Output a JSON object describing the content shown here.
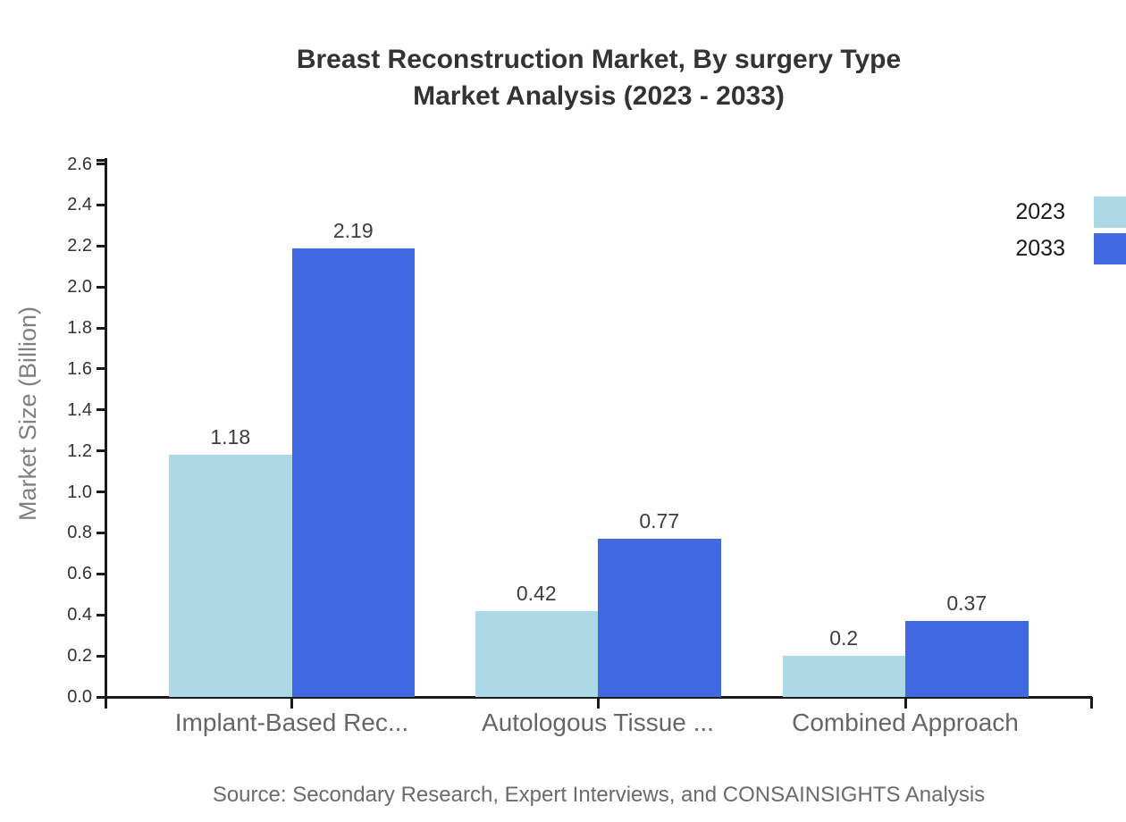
{
  "title": {
    "line1": "Breast Reconstruction Market, By surgery Type",
    "line2": "Market Analysis (2023 - 2033)"
  },
  "source_note": "Source: Secondary Research, Expert Interviews, and CONSAINSIGHTS Analysis",
  "legend": [
    {
      "label": "2023",
      "color": "#ADD8E6"
    },
    {
      "label": "2033",
      "color": "#4169E1"
    }
  ],
  "colors": {
    "axis": "#1a1a1a",
    "bar_2023": "#ADD8E6",
    "bar_2033": "#4169E1",
    "title_text": "#333333",
    "tick_text": "#333333",
    "category_text": "#666666",
    "value_text": "#3d3d3d",
    "ylabel_text": "#808080",
    "source_text": "#6b6b6b"
  },
  "chart_data": {
    "type": "bar",
    "title": "Breast Reconstruction Market, By surgery Type Market Analysis (2023 - 2033)",
    "categories": [
      "Implant-Based Rec...",
      "Autologous Tissue ...",
      "Combined Approach"
    ],
    "series": [
      {
        "name": "2023",
        "color": "#ADD8E6",
        "values": [
          1.18,
          0.42,
          0.2
        ],
        "value_labels": [
          "1.18",
          "0.42",
          "0.2"
        ]
      },
      {
        "name": "2033",
        "color": "#4169E1",
        "values": [
          2.19,
          0.77,
          0.37
        ],
        "value_labels": [
          "2.19",
          "0.77",
          "0.37"
        ]
      }
    ],
    "xlabel": "",
    "ylabel": "Market Size (Billion)",
    "ylim": [
      0,
      2.6
    ],
    "ytick_step": 0.2,
    "ytick_labels": [
      "0.0",
      "0.2",
      "0.4",
      "0.6",
      "0.8",
      "1.0",
      "1.2",
      "1.4",
      "1.6",
      "1.8",
      "2.0",
      "2.2",
      "2.4",
      "2.6"
    ],
    "grid": false,
    "legend_position": "top-right"
  }
}
